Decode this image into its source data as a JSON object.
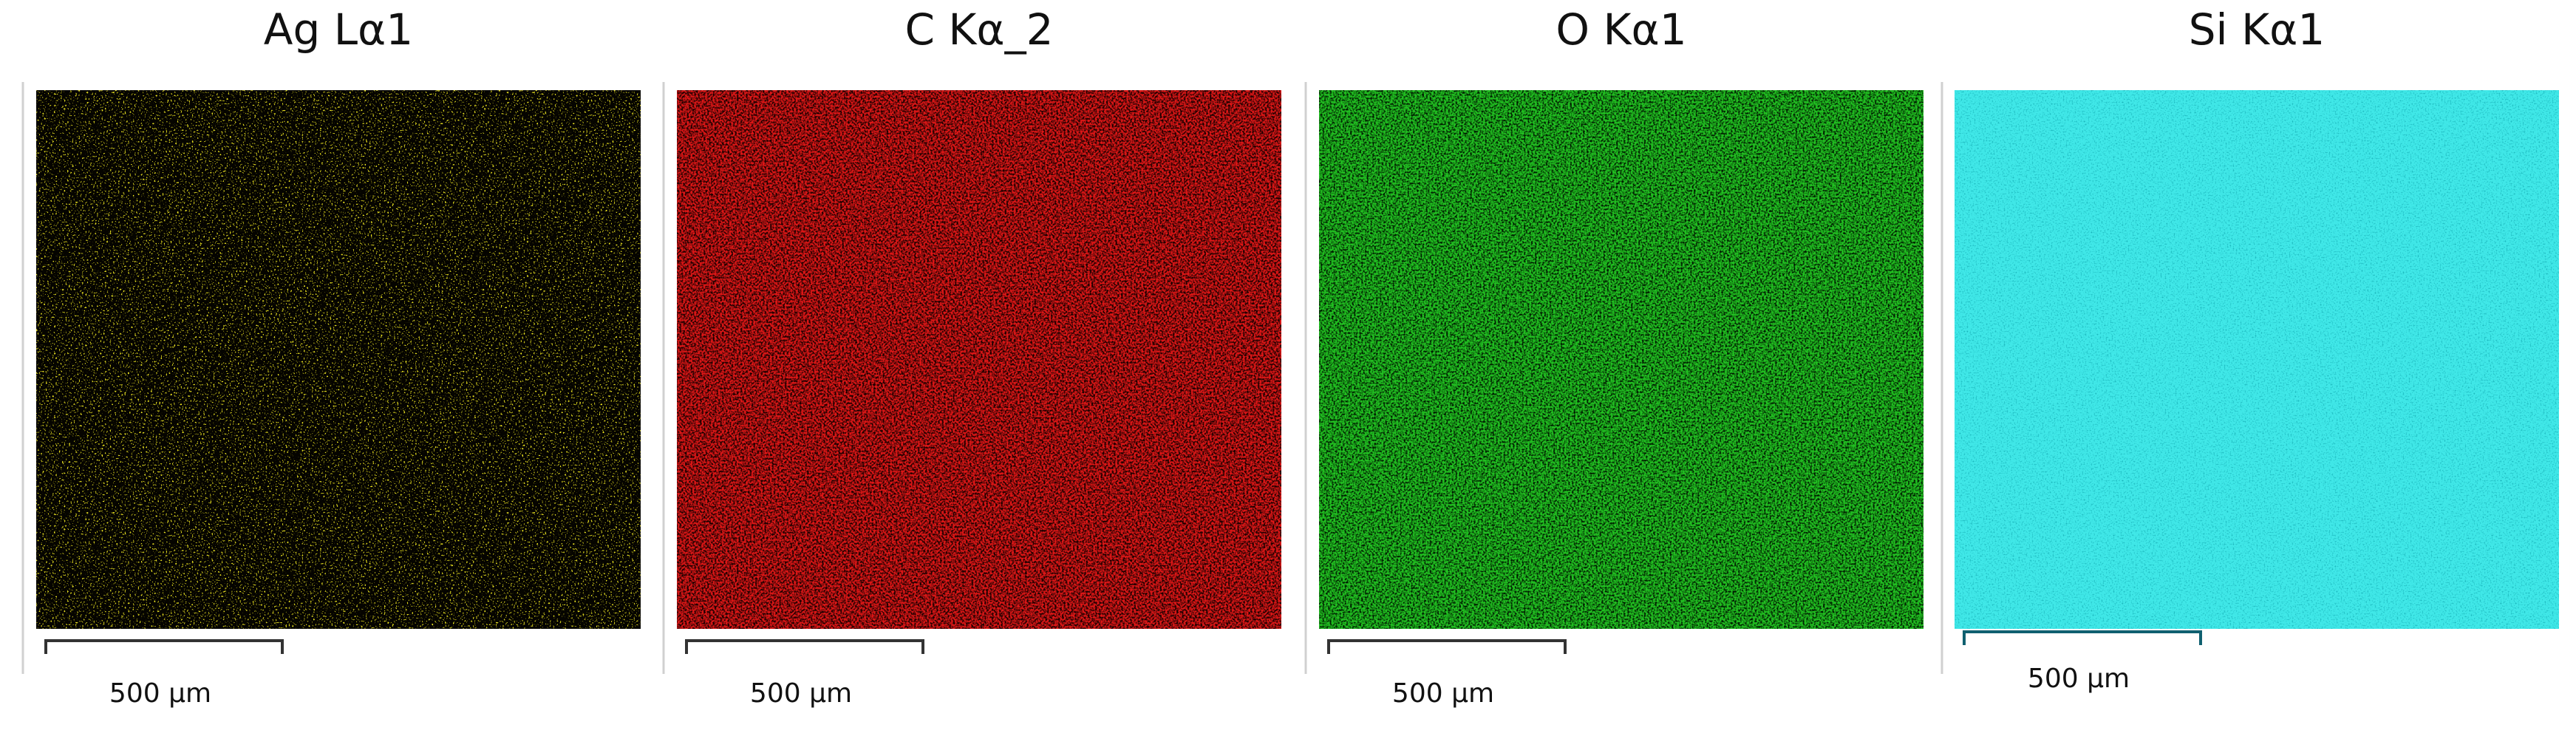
{
  "panels": [
    {
      "title": "Ag Lα1",
      "scale_label": "500 µm",
      "color": "#e8e020"
    },
    {
      "title": "C Kα_2",
      "scale_label": "500 µm",
      "color": "#e01818"
    },
    {
      "title": "O Kα1",
      "scale_label": "500 µm",
      "color": "#20c020"
    },
    {
      "title": "Si Kα1",
      "scale_label": "500 µm",
      "color": "#40e8e8"
    }
  ]
}
